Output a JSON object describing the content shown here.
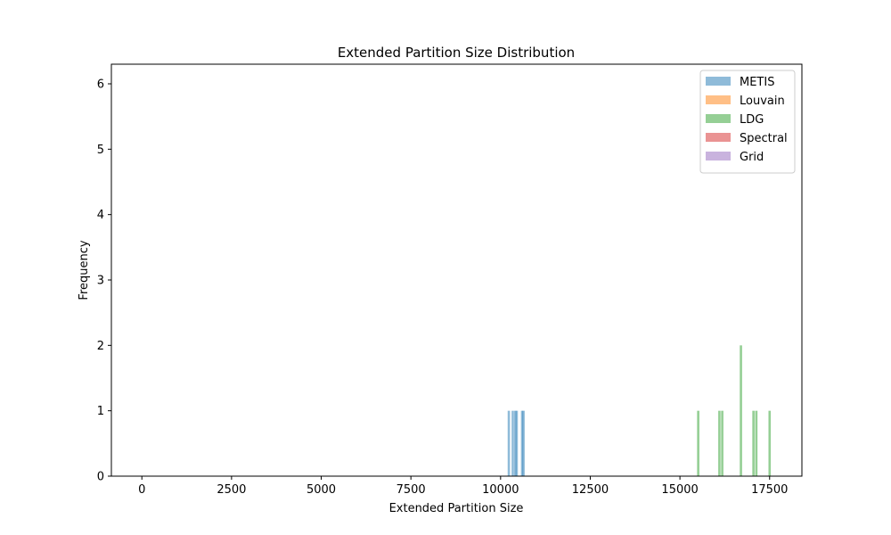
{
  "chart_data": {
    "type": "bar",
    "title": "Extended Partition Size Distribution",
    "xlabel": "Extended Partition Size",
    "ylabel": "Frequency",
    "xlim": [
      -850,
      18400
    ],
    "ylim": [
      0,
      6.3
    ],
    "xticks": [
      0,
      2500,
      5000,
      7500,
      10000,
      12500,
      15000,
      17500
    ],
    "xtick_labels": [
      "0",
      "2500",
      "5000",
      "7500",
      "10000",
      "12500",
      "15000",
      "17500"
    ],
    "yticks": [
      0,
      1,
      2,
      3,
      4,
      5,
      6
    ],
    "ytick_labels": [
      "0",
      "1",
      "2",
      "3",
      "4",
      "5",
      "6"
    ],
    "grid": false,
    "legend": {
      "placement": "top-right"
    },
    "bar_width": 65,
    "series": [
      {
        "name": "METIS",
        "color": "#1f77b4",
        "alpha": 0.5,
        "bars": [
          {
            "x": 10230,
            "y": 1
          },
          {
            "x": 10340,
            "y": 1
          },
          {
            "x": 10410,
            "y": 1
          },
          {
            "x": 10450,
            "y": 1
          },
          {
            "x": 10600,
            "y": 1
          },
          {
            "x": 10640,
            "y": 1
          }
        ]
      },
      {
        "name": "Louvain",
        "color": "#ff7f0e",
        "alpha": 0.5,
        "bars": []
      },
      {
        "name": "LDG",
        "color": "#2ca02c",
        "alpha": 0.5,
        "bars": [
          {
            "x": 15510,
            "y": 1
          },
          {
            "x": 16100,
            "y": 1
          },
          {
            "x": 16180,
            "y": 1
          },
          {
            "x": 16700,
            "y": 2
          },
          {
            "x": 17050,
            "y": 1
          },
          {
            "x": 17130,
            "y": 1
          },
          {
            "x": 17500,
            "y": 1
          }
        ]
      },
      {
        "name": "Spectral",
        "color": "#d62728",
        "alpha": 0.5,
        "bars": []
      },
      {
        "name": "Grid",
        "color": "#9467bd",
        "alpha": 0.5,
        "bars": []
      }
    ]
  }
}
